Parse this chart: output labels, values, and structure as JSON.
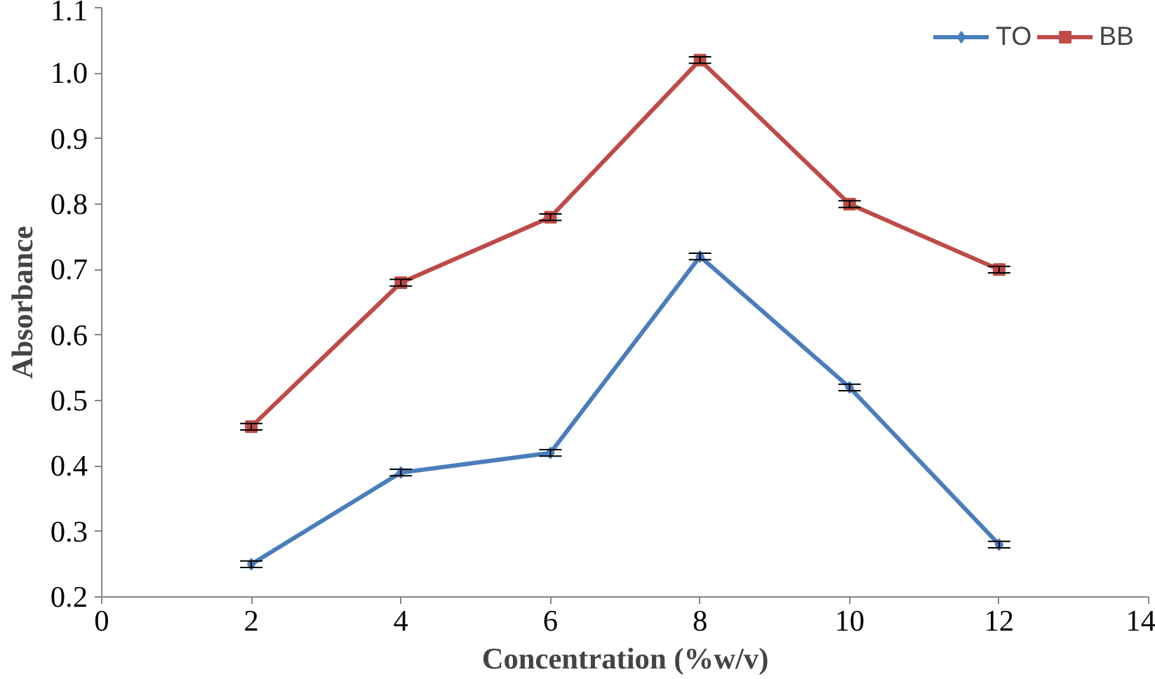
{
  "chart_data": {
    "type": "line",
    "xlabel": "Concentration (%w/v)",
    "ylabel": "Absorbance",
    "x": [
      2,
      4,
      6,
      8,
      10,
      12
    ],
    "series": [
      {
        "name": "TO",
        "color": "#4a7ebb",
        "marker": "diamond",
        "values": [
          0.25,
          0.39,
          0.42,
          0.72,
          0.52,
          0.28
        ],
        "errors": [
          0.005,
          0.005,
          0.005,
          0.005,
          0.005,
          0.005
        ]
      },
      {
        "name": "BB",
        "color": "#be4b48",
        "marker": "square",
        "values": [
          0.46,
          0.68,
          0.78,
          1.02,
          0.8,
          0.7
        ],
        "errors": [
          0.005,
          0.005,
          0.005,
          0.005,
          0.005,
          0.005
        ]
      }
    ],
    "xlim": [
      0,
      14
    ],
    "xticks": [
      0,
      2,
      4,
      6,
      8,
      10,
      12,
      14
    ],
    "ylim": [
      0.2,
      1.1
    ],
    "yticks": [
      {
        "value": 0.2,
        "label": "0.2"
      },
      {
        "value": 0.3,
        "label": "0.3"
      },
      {
        "value": 0.4,
        "label": "0.4"
      },
      {
        "value": 0.5,
        "label": "0.5"
      },
      {
        "value": 0.6,
        "label": "0.6"
      },
      {
        "value": 0.7,
        "label": "0.7"
      },
      {
        "value": 0.8,
        "label": "0.8"
      },
      {
        "value": 0.9,
        "label": "0.9"
      },
      {
        "value": 1.0,
        "label": "1.0"
      },
      {
        "value": 1.1,
        "label": "1.1"
      }
    ],
    "grid": false,
    "legend": "top right",
    "line_style": "solid"
  }
}
